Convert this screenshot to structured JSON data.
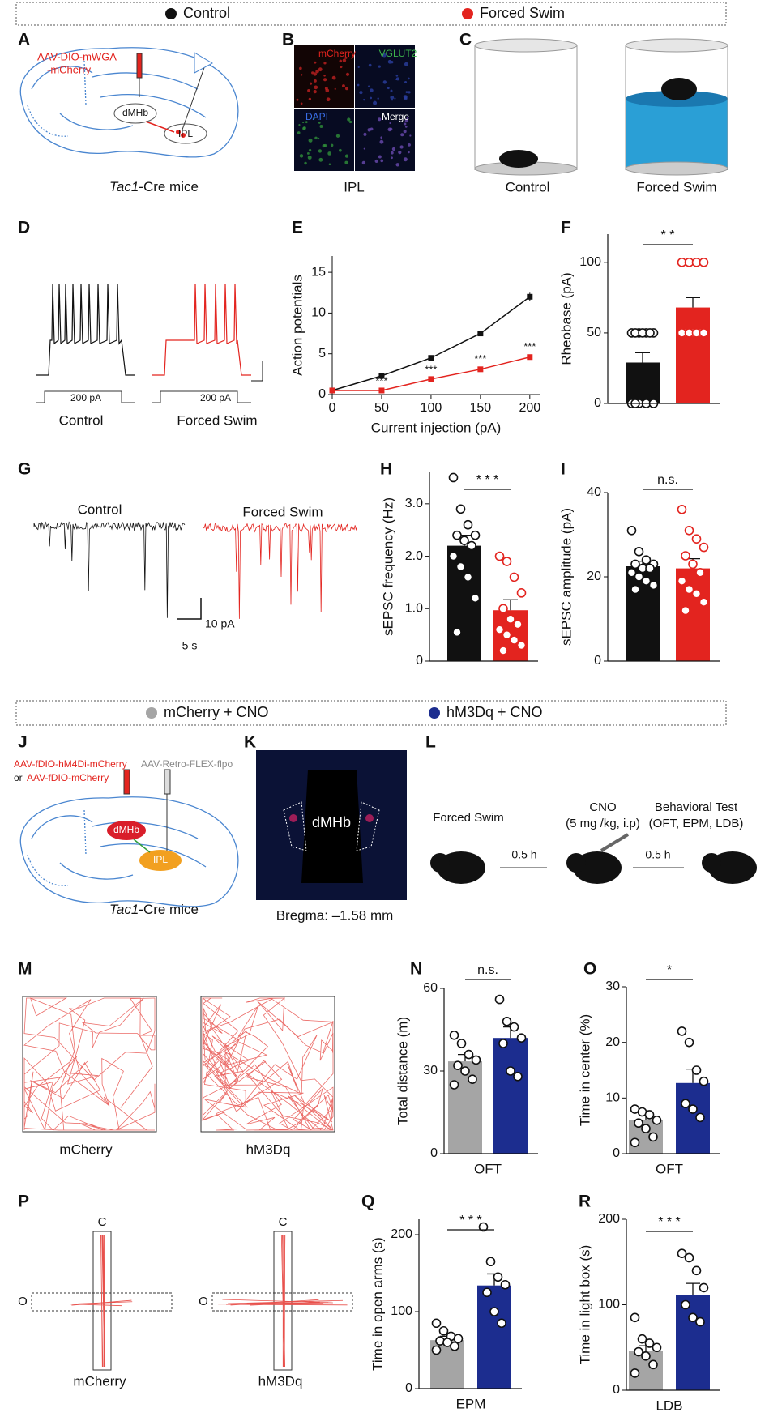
{
  "legends": [
    {
      "items": [
        {
          "label": "Control",
          "color": "#111111"
        },
        {
          "label": "Forced Swim",
          "color": "#e3241f"
        }
      ]
    },
    {
      "items": [
        {
          "label": "mCherry + CNO",
          "color": "#a5a5a5"
        },
        {
          "label": "hM3Dq + CNO",
          "color": "#1c2d8f"
        }
      ]
    }
  ],
  "panel_letters": [
    "A",
    "B",
    "C",
    "D",
    "E",
    "F",
    "G",
    "H",
    "I",
    "J",
    "K",
    "L",
    "M",
    "N",
    "O",
    "P",
    "Q",
    "R"
  ],
  "a": {
    "vector_1": "AAV-DIO-mWGA",
    "vector_2": "-mCherry",
    "region_1": "dMHb",
    "region_2": "IPL",
    "mouse_1": "Tac1",
    "mouse_2": "-Cre mice"
  },
  "b": {
    "channels": [
      "mCherry",
      "VGLUT2",
      "DAPI",
      "Merge"
    ],
    "caption": "IPL"
  },
  "c": {
    "captions": [
      "Control",
      "Forced Swim"
    ]
  },
  "d": {
    "stimulus": [
      "200 pA",
      "200 pA"
    ],
    "captions": [
      "Control",
      "Forced Swim"
    ]
  },
  "g": {
    "captions": [
      "Control",
      "Forced Swim"
    ],
    "scale_y": "10 pA",
    "scale_x": "5 s"
  },
  "j": {
    "vector_1": "AAV-fDIO-hM4Di-mCherry",
    "vector_2": "AAV-Retro-FLEX-flpo",
    "conjunction": "or",
    "vector_3": "AAV-fDIO-mCherry",
    "region_1": "dMHb",
    "region_2": "IPL",
    "mouse_1": "Tac1",
    "mouse_2": "-Cre mice"
  },
  "k": {
    "region": "dMHb",
    "caption": "Bregma: –1.58 mm"
  },
  "l": {
    "steps": [
      [
        "Forced Swim"
      ],
      [
        "CNO",
        "(5 mg /kg, i.p)"
      ],
      [
        "Behavioral Test",
        "(OFT, EPM, LDB)"
      ]
    ],
    "intervals": [
      "0.5 h",
      "0.5 h"
    ]
  },
  "m": {
    "captions": [
      "mCherry",
      "hM3Dq"
    ]
  },
  "p": {
    "arm_closed": [
      "C",
      "C"
    ],
    "arm_open": [
      "O",
      "O"
    ],
    "captions": [
      "mCherry",
      "hM3Dq"
    ]
  },
  "chart_data": [
    {
      "type": "line",
      "ylabel": "Action potentials",
      "xlabel": "Current injection (pA)",
      "x": [
        0,
        50,
        100,
        150,
        200
      ],
      "series": [
        {
          "color": "#111111",
          "values": [
            0.5,
            2.3,
            4.5,
            7.5,
            12
          ],
          "errors": [
            0.1,
            0.2,
            0.3,
            0.3,
            0.5
          ]
        },
        {
          "color": "#e3241f",
          "values": [
            0.5,
            0.5,
            1.9,
            3.1,
            4.6
          ],
          "errors": [
            0.1,
            0.2,
            0.2,
            0.3,
            0.3
          ],
          "annotations": [
            null,
            "***",
            "***",
            "***",
            "***"
          ]
        }
      ],
      "xlim": [
        0,
        210
      ],
      "ylim": [
        0,
        17
      ],
      "xticks": [
        0,
        50,
        100,
        150,
        200
      ],
      "yticks": [
        0,
        5,
        10,
        15
      ]
    },
    {
      "type": "bar",
      "ylabel": "Rheobase (pA)",
      "values": [
        29,
        68
      ],
      "errors": [
        7,
        7
      ],
      "colors": [
        "#111111",
        "#e3241f"
      ],
      "point_colors": [
        "#111111",
        "#e3241f"
      ],
      "points": [
        [
          50,
          50,
          50,
          50,
          50,
          50,
          50,
          0,
          0,
          0,
          0,
          0
        ],
        [
          100,
          100,
          100,
          100,
          50,
          50,
          50,
          50,
          50,
          50,
          50
        ]
      ],
      "ylim": [
        0,
        120
      ],
      "yticks": [
        0,
        50,
        100
      ],
      "significance": "* *"
    },
    {
      "type": "bar",
      "ylabel": "sEPSC frequency (Hz)",
      "values": [
        2.2,
        0.97
      ],
      "errors": [
        0.2,
        0.2
      ],
      "colors": [
        "#111111",
        "#e3241f"
      ],
      "point_colors": [
        "#111111",
        "#e3241f"
      ],
      "points": [
        [
          3.5,
          2.9,
          2.6,
          2.4,
          2.4,
          2.3,
          2.2,
          2.0,
          1.8,
          1.6,
          1.2,
          0.55
        ],
        [
          2.0,
          1.9,
          1.6,
          1.3,
          1.0,
          0.8,
          0.7,
          0.6,
          0.5,
          0.4,
          0.3,
          0.2
        ]
      ],
      "ylim": [
        0,
        3.6
      ],
      "yticks": [
        0,
        {
          "value": 1,
          "label": "1.0"
        },
        {
          "value": 2,
          "label": "2.0"
        },
        {
          "value": 3,
          "label": "3.0"
        }
      ],
      "significance": "* * *"
    },
    {
      "type": "bar",
      "ylabel": "sEPSC amplitude (pA)",
      "values": [
        22.5,
        22
      ],
      "errors": [
        1.2,
        2.3
      ],
      "colors": [
        "#111111",
        "#e3241f"
      ],
      "point_colors": [
        "#111111",
        "#e3241f"
      ],
      "points": [
        [
          31,
          26,
          24,
          23,
          23,
          22,
          22,
          21,
          20,
          19,
          18,
          17
        ],
        [
          36,
          31,
          29,
          27,
          25,
          23,
          21,
          19,
          17,
          16,
          14,
          12
        ]
      ],
      "ylim": [
        0,
        40
      ],
      "yticks": [
        0,
        20,
        40
      ],
      "significance": "n.s."
    },
    {
      "type": "bar",
      "ylabel": "Total distance (m)",
      "xlabel": "OFT",
      "values": [
        33.5,
        42
      ],
      "errors": [
        2.5,
        4
      ],
      "colors": [
        "#a5a5a5",
        "#1c2d8f"
      ],
      "point_colors": [
        "#111111",
        "#111111"
      ],
      "points": [
        [
          43,
          40,
          36,
          34,
          32,
          30,
          27,
          25
        ],
        [
          56,
          48,
          46,
          42,
          40,
          30,
          28
        ]
      ],
      "ylim": [
        0,
        60
      ],
      "yticks": [
        0,
        30,
        60
      ],
      "significance": "n.s."
    },
    {
      "type": "bar",
      "ylabel": "Time in center (%)",
      "xlabel": "OFT",
      "values": [
        6,
        12.7
      ],
      "errors": [
        1,
        2.5
      ],
      "colors": [
        "#a5a5a5",
        "#1c2d8f"
      ],
      "point_colors": [
        "#111111",
        "#111111"
      ],
      "points": [
        [
          8,
          7.5,
          7,
          6,
          5.5,
          4.5,
          3,
          2
        ],
        [
          22,
          20,
          15,
          13,
          9,
          8,
          6.5
        ]
      ],
      "ylim": [
        0,
        30
      ],
      "yticks": [
        0,
        10,
        20,
        30
      ],
      "significance": "*"
    },
    {
      "type": "bar",
      "ylabel": "Time in open arms (s)",
      "xlabel": "EPM",
      "values": [
        63,
        134
      ],
      "errors": [
        5,
        15
      ],
      "colors": [
        "#a5a5a5",
        "#1c2d8f"
      ],
      "point_colors": [
        "#111111",
        "#111111"
      ],
      "points": [
        [
          85,
          75,
          68,
          65,
          62,
          60,
          55,
          50
        ],
        [
          210,
          165,
          145,
          135,
          125,
          100,
          85
        ]
      ],
      "ylim": [
        0,
        220
      ],
      "yticks": [
        0,
        100,
        200
      ],
      "significance": "* * *"
    },
    {
      "type": "bar",
      "ylabel": "Time in light box (s)",
      "xlabel": "LDB",
      "values": [
        46,
        111
      ],
      "errors": [
        6,
        14
      ],
      "colors": [
        "#a5a5a5",
        "#1c2d8f"
      ],
      "point_colors": [
        "#111111",
        "#111111"
      ],
      "points": [
        [
          85,
          60,
          55,
          50,
          45,
          40,
          30,
          20
        ],
        [
          160,
          155,
          140,
          120,
          100,
          85,
          80
        ]
      ],
      "ylim": [
        0,
        200
      ],
      "yticks": [
        0,
        100,
        200
      ],
      "significance": "* * *"
    }
  ]
}
